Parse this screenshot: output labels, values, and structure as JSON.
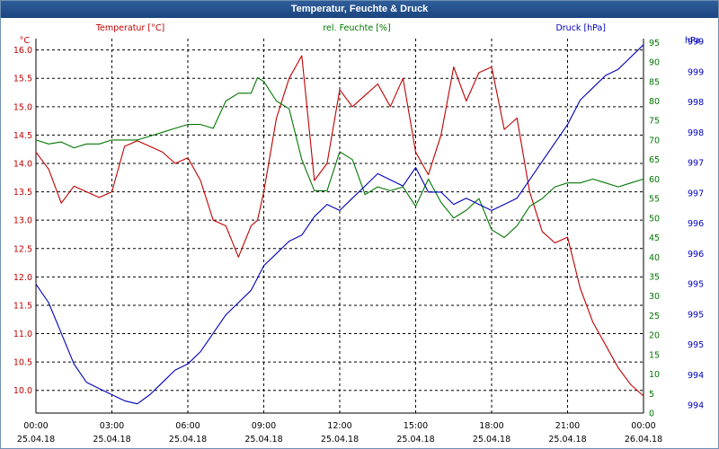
{
  "window": {
    "title": "Temperatur, Feuchte & Druck"
  },
  "chart_data": {
    "type": "line",
    "title": "Temperatur, Feuchte & Druck",
    "grid": true,
    "x_ticks": [
      {
        "time": "00:00",
        "date": "25.04.18"
      },
      {
        "time": "03:00",
        "date": "25.04.18"
      },
      {
        "time": "06:00",
        "date": "25.04.18"
      },
      {
        "time": "09:00",
        "date": "25.04.18"
      },
      {
        "time": "12:00",
        "date": "25.04.18"
      },
      {
        "time": "15:00",
        "date": "25.04.18"
      },
      {
        "time": "18:00",
        "date": "25.04.18"
      },
      {
        "time": "21:00",
        "date": "25.04.18"
      },
      {
        "time": "00:00",
        "date": "26.04.18"
      }
    ],
    "axes": {
      "temperature": {
        "label": "Temperatur [°C]",
        "unit": "°C",
        "color": "#c00000",
        "ylim": [
          9.6,
          16.2
        ],
        "ticks": [
          "10.0",
          "10.5",
          "11.0",
          "11.5",
          "12.0",
          "12.5",
          "13.0",
          "13.5",
          "14.0",
          "14.5",
          "15.0",
          "15.5",
          "16.0"
        ]
      },
      "humidity": {
        "label": "rel. Feuchte [%]",
        "unit": "%",
        "color": "#007700",
        "ylim": [
          0,
          96
        ],
        "ticks": [
          "0",
          "5",
          "10",
          "15",
          "20",
          "25",
          "30",
          "35",
          "40",
          "45",
          "50",
          "55",
          "60",
          "65",
          "70",
          "75",
          "80",
          "85",
          "90",
          "95"
        ]
      },
      "pressure": {
        "label": "Druck [hPa]",
        "unit": "hPa",
        "color": "#0000bb",
        "ylim": [
          993.8,
          999.9
        ],
        "ticks": [
          "994",
          "994",
          "995",
          "995",
          "995",
          "996",
          "996",
          "997",
          "997",
          "998",
          "998",
          "999",
          "999"
        ]
      }
    },
    "series": [
      {
        "name": "Temperatur [°C]",
        "axis": "temperature",
        "color": "#c00000",
        "x": [
          0,
          0.5,
          1,
          1.5,
          2,
          2.5,
          3,
          3.5,
          4,
          4.5,
          5,
          5.5,
          6,
          6.5,
          7,
          7.5,
          8,
          8.5,
          8.75,
          9,
          9.5,
          10,
          10.5,
          11,
          11.5,
          12,
          12.5,
          13,
          13.5,
          14,
          14.5,
          15,
          15.5,
          16,
          16.5,
          17,
          17.5,
          18,
          18.5,
          19,
          19.5,
          20,
          20.5,
          21,
          21.5,
          22,
          22.5,
          23,
          23.5,
          24
        ],
        "values": [
          14.2,
          13.9,
          13.3,
          13.6,
          13.5,
          13.4,
          13.5,
          14.3,
          14.4,
          14.3,
          14.2,
          14.0,
          14.1,
          13.7,
          13.0,
          12.9,
          12.35,
          12.9,
          13.0,
          13.5,
          14.8,
          15.5,
          15.9,
          13.7,
          14.0,
          15.3,
          15.0,
          15.2,
          15.4,
          15.0,
          15.5,
          14.2,
          13.8,
          14.5,
          15.7,
          15.1,
          15.6,
          15.7,
          14.6,
          14.8,
          13.5,
          12.8,
          12.6,
          12.7,
          11.8,
          11.2,
          10.8,
          10.4,
          10.1,
          9.9
        ]
      },
      {
        "name": "rel. Feuchte [%]",
        "axis": "humidity",
        "color": "#007700",
        "x": [
          0,
          0.5,
          1,
          1.5,
          2,
          2.5,
          3,
          3.5,
          4,
          4.5,
          5,
          5.5,
          6,
          6.5,
          7,
          7.5,
          8,
          8.5,
          8.75,
          9,
          9.5,
          10,
          10.5,
          11,
          11.5,
          12,
          12.5,
          13,
          13.5,
          14,
          14.5,
          15,
          15.5,
          16,
          16.5,
          17,
          17.5,
          18,
          18.5,
          19,
          19.5,
          20,
          20.5,
          21,
          21.5,
          22,
          22.5,
          23,
          23.5,
          24
        ],
        "values": [
          70,
          69,
          69.5,
          68,
          69,
          69,
          70,
          70,
          70,
          71,
          72,
          73,
          74,
          74,
          73,
          80,
          82,
          82,
          86,
          85,
          80,
          78,
          65,
          57,
          57,
          67,
          65,
          56,
          58,
          57,
          58,
          53,
          60,
          54,
          50,
          52,
          55,
          47,
          45,
          48,
          53,
          55,
          58,
          59,
          59,
          60,
          59,
          58,
          59,
          60
        ]
      },
      {
        "name": "Druck [hPa]",
        "axis": "pressure",
        "color": "#0000bb",
        "x": [
          0,
          0.5,
          1,
          1.5,
          2,
          2.5,
          3,
          3.5,
          4,
          4.5,
          5,
          5.5,
          6,
          6.5,
          7,
          7.5,
          8,
          8.5,
          8.75,
          9,
          9.5,
          10,
          10.5,
          11,
          11.5,
          12,
          12.5,
          13,
          13.5,
          14,
          14.5,
          15,
          15.5,
          16,
          16.5,
          17,
          17.5,
          18,
          18.5,
          19,
          19.5,
          20,
          20.5,
          21,
          21.5,
          22,
          22.5,
          23,
          23.5,
          24
        ],
        "values": [
          995.9,
          995.6,
          995.1,
          994.6,
          994.3,
          994.2,
          994.1,
          994.0,
          993.95,
          994.1,
          994.3,
          994.5,
          994.6,
          994.8,
          995.1,
          995.4,
          995.6,
          995.8,
          996.0,
          996.2,
          996.4,
          996.6,
          996.7,
          997.0,
          997.2,
          997.1,
          997.3,
          997.5,
          997.7,
          997.6,
          997.5,
          997.8,
          997.4,
          997.4,
          997.2,
          997.3,
          997.2,
          997.1,
          997.2,
          997.3,
          997.6,
          997.9,
          998.2,
          998.5,
          998.9,
          999.1,
          999.3,
          999.4,
          999.6,
          999.8
        ]
      }
    ]
  }
}
